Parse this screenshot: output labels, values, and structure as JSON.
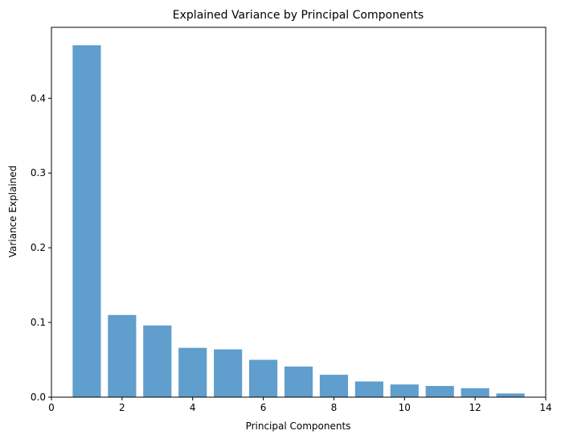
{
  "chart_data": {
    "type": "bar",
    "title": "Explained Variance by Principal Components",
    "xlabel": "Principal Components",
    "ylabel": "Variance Explained",
    "x": [
      1,
      2,
      3,
      4,
      5,
      6,
      7,
      8,
      9,
      10,
      11,
      12,
      13
    ],
    "values": [
      0.471,
      0.11,
      0.096,
      0.066,
      0.064,
      0.05,
      0.041,
      0.03,
      0.021,
      0.017,
      0.015,
      0.012,
      0.005
    ],
    "xlim": [
      0,
      14
    ],
    "ylim": [
      0,
      0.495
    ],
    "xticks": [
      "0",
      "2",
      "4",
      "6",
      "8",
      "10",
      "12",
      "14"
    ],
    "yticks": [
      "0.0",
      "0.1",
      "0.2",
      "0.3",
      "0.4"
    ],
    "bar_color": "#5f9ecd",
    "grid": false,
    "legend": "none"
  }
}
